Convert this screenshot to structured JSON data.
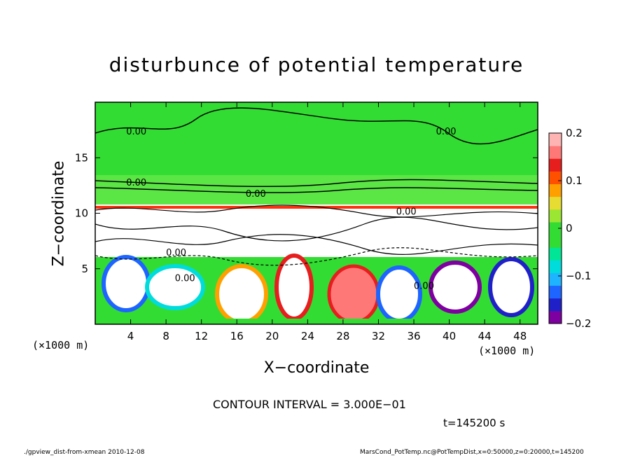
{
  "chart_data": {
    "type": "heatmap",
    "title": "disturbunce of potential temperature",
    "xlabel": "X−coordinate",
    "ylabel": "Z−coordinate",
    "x_unit_label": "(×1000 m)",
    "xlim": [
      0,
      50
    ],
    "ylim": [
      0,
      20
    ],
    "x_ticks": [
      "4",
      "8",
      "12",
      "16",
      "20",
      "24",
      "28",
      "32",
      "36",
      "40",
      "44",
      "48"
    ],
    "x_tick_values": [
      4,
      8,
      12,
      16,
      20,
      24,
      28,
      32,
      36,
      40,
      44,
      48
    ],
    "y_ticks": [
      "5",
      "10",
      "15"
    ],
    "y_tick_values": [
      5,
      10,
      15
    ],
    "colorbar": {
      "range": [
        -0.2,
        0.2
      ],
      "tick_labels": [
        "0.2",
        "0.1",
        "0",
        "−0.1",
        "−0.2"
      ],
      "tick_values": [
        0.2,
        0.1,
        0,
        -0.1,
        -0.2
      ],
      "colors": [
        "#7f00a0",
        "#2020c8",
        "#1e64ff",
        "#1eb4ff",
        "#00dcdc",
        "#00e696",
        "#32dc32",
        "#32dc32",
        "#9be632",
        "#e6dc32",
        "#ffa000",
        "#ff5000",
        "#e61e1e",
        "#ff7878",
        "#ffb4b4"
      ]
    },
    "contour_labels": [
      {
        "text": "0.00",
        "x": 3.5,
        "z": 17.4
      },
      {
        "text": "0.00",
        "x": 38.5,
        "z": 17.4
      },
      {
        "text": "0.00",
        "x": 3.5,
        "z": 12.8
      },
      {
        "text": "0.00",
        "x": 17,
        "z": 11.8
      },
      {
        "text": "0.00",
        "x": 34,
        "z": 10.2
      },
      {
        "text": "0.00",
        "x": 8,
        "z": 6.5
      },
      {
        "text": "0.00",
        "x": 36,
        "z": 3.5
      },
      {
        "text": "0.00",
        "x": 9,
        "z": 4.2
      }
    ],
    "grid": false
  },
  "annotations": {
    "contour_interval": "CONTOUR INTERVAL = 3.000E−01",
    "time": "t=145200 s",
    "footer_left": "./gpview_dist-from-xmean  2010-12-08",
    "footer_right": "MarsCond_PotTemp.nc@PotTempDist,x=0:50000,z=0:20000,t=145200"
  }
}
